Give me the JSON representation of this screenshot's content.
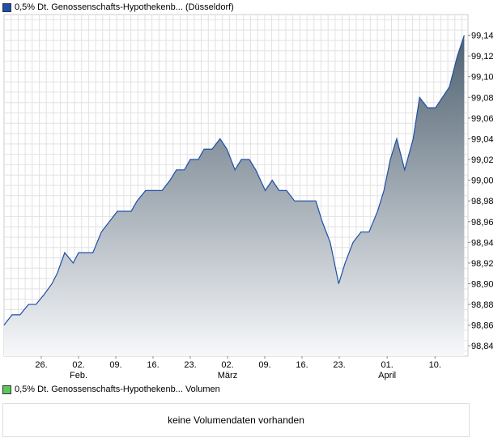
{
  "legend_main": {
    "label": "0,5% Dt. Genossenschafts-Hypothekenb... (Düsseldorf)",
    "color": "#1f4fa8"
  },
  "legend_volume": {
    "label": "0,5% Dt. Genossenschafts-Hypothekenb... Volumen",
    "color": "#5cc85c"
  },
  "volume_message": "keine Volumendaten vorhanden",
  "chart_data": {
    "type": "area",
    "title": "",
    "xlabel": "",
    "ylabel": "",
    "x_unit": "days since start of plotted range",
    "xlim": [
      0,
      87.2
    ],
    "ylim": [
      98.83,
      99.16
    ],
    "y_ticks": [
      "98,84",
      "98,86",
      "98,88",
      "98,90",
      "98,92",
      "98,94",
      "98,96",
      "98,98",
      "99,00",
      "99,02",
      "99,04",
      "99,06",
      "99,08",
      "99,10",
      "99,12",
      "99,14"
    ],
    "x_ticks": [
      {
        "x": 7,
        "label": "26."
      },
      {
        "x": 14,
        "label": "02.",
        "sub": "Feb."
      },
      {
        "x": 21,
        "label": "09."
      },
      {
        "x": 28,
        "label": "16."
      },
      {
        "x": 35,
        "label": "23."
      },
      {
        "x": 42,
        "label": "02.",
        "sub": "März"
      },
      {
        "x": 49,
        "label": "09."
      },
      {
        "x": 56,
        "label": "16."
      },
      {
        "x": 63,
        "label": "23."
      },
      {
        "x": 72,
        "label": "01.",
        "sub": "April"
      },
      {
        "x": 81,
        "label": "10."
      }
    ],
    "grid": true,
    "series": [
      {
        "name": "0,5% Dt. Genossenschafts-Hypothekenb... (Düsseldorf)",
        "x": [
          0,
          1.5,
          3,
          4.6,
          6,
          7.6,
          9,
          10,
          11.4,
          13,
          14,
          16.7,
          18.3,
          19.8,
          21.3,
          23.9,
          25,
          26.6,
          29.7,
          31.2,
          32.4,
          33.9,
          35,
          36.5,
          37.6,
          39.1,
          40.6,
          41.9,
          43.4,
          44.6,
          46.1,
          47.3,
          48.2,
          49.1,
          50.4,
          51.7,
          53.1,
          54.6,
          58.6,
          59.8,
          61.3,
          62.9,
          64.1,
          65.6,
          67.1,
          68.6,
          70.2,
          71.4,
          72.6,
          73.8,
          75.3,
          76.9,
          78.1,
          79.6,
          81.1,
          83.7,
          85.2,
          86.5
        ],
        "y": [
          98.86,
          98.87,
          98.87,
          98.88,
          98.88,
          98.89,
          98.9,
          98.91,
          98.93,
          98.92,
          98.93,
          98.93,
          98.95,
          98.96,
          98.97,
          98.97,
          98.98,
          98.99,
          98.99,
          99.0,
          99.01,
          99.01,
          99.02,
          99.02,
          99.03,
          99.03,
          99.04,
          99.03,
          99.01,
          99.02,
          99.02,
          99.01,
          99.0,
          98.99,
          99.0,
          98.99,
          98.99,
          98.98,
          98.98,
          98.96,
          98.94,
          98.9,
          98.92,
          98.94,
          98.95,
          98.95,
          98.97,
          98.99,
          99.02,
          99.04,
          99.01,
          99.04,
          99.08,
          99.07,
          99.07,
          99.09,
          99.12,
          99.14
        ]
      }
    ]
  }
}
